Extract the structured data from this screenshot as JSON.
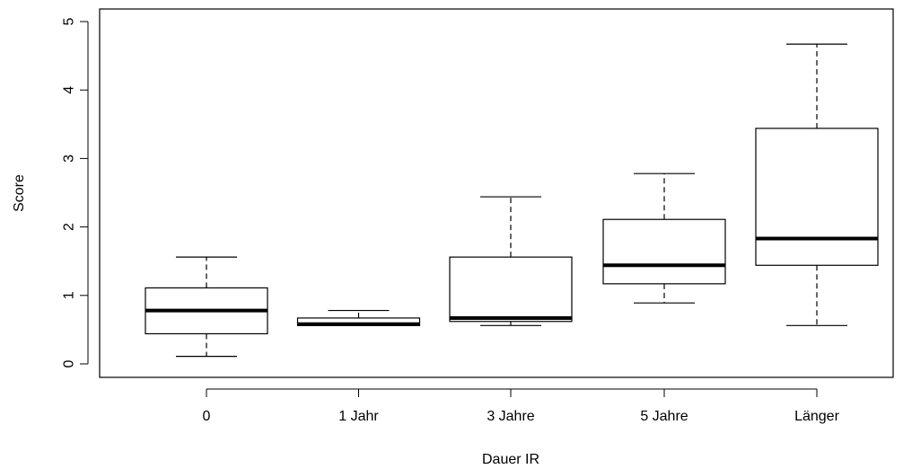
{
  "chart_data": {
    "type": "boxplot",
    "title": "",
    "xlabel": "Dauer IR",
    "ylabel": "Score",
    "ylim": [
      -0.2,
      5.1
    ],
    "yticks": [
      0,
      1,
      2,
      3,
      4,
      5
    ],
    "yticks_labels": [
      "0",
      "1",
      "2",
      "3",
      "4",
      "5"
    ],
    "categories": [
      "0",
      "1 Jahr",
      "3 Jahre",
      "5 Jahre",
      "Länger"
    ],
    "boxes": [
      {
        "category": "0",
        "whisker_low": 0.11,
        "q1": 0.44,
        "median": 0.78,
        "q3": 1.11,
        "whisker_high": 1.56
      },
      {
        "category": "1 Jahr",
        "whisker_low": 0.56,
        "q1": 0.56,
        "median": 0.58,
        "q3": 0.67,
        "whisker_high": 0.78
      },
      {
        "category": "3 Jahre",
        "whisker_low": 0.56,
        "q1": 0.62,
        "median": 0.67,
        "q3": 1.56,
        "whisker_high": 2.44
      },
      {
        "category": "5 Jahre",
        "whisker_low": 0.89,
        "q1": 1.17,
        "median": 1.44,
        "q3": 2.11,
        "whisker_high": 2.78
      },
      {
        "category": "Länger",
        "whisker_low": 0.56,
        "q1": 1.44,
        "median": 1.83,
        "q3": 3.44,
        "whisker_high": 4.67
      }
    ],
    "grid": false,
    "legend": "none"
  }
}
